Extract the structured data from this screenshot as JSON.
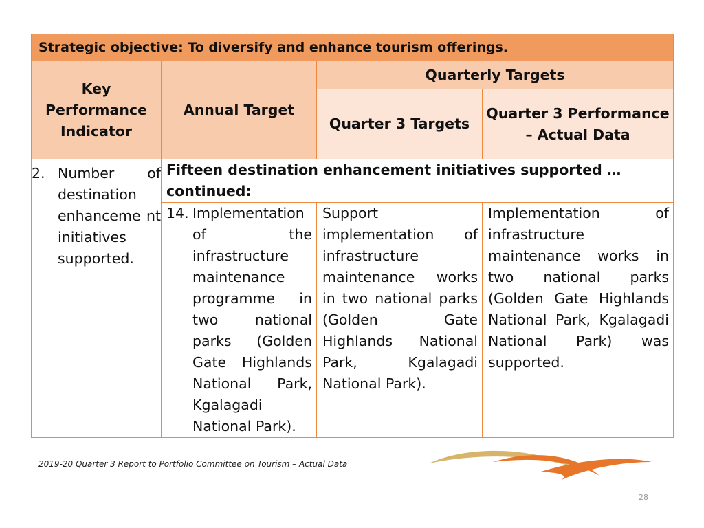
{
  "objective": "Strategic objective: To diversify and enhance tourism offerings.",
  "headers": {
    "kpi": "Key Performance Indicator",
    "annual_target": "Annual Target",
    "quarterly_targets": "Quarterly Targets",
    "q3_targets": "Quarter 3 Targets",
    "q3_performance": "Quarter 3 Performance – Actual Data"
  },
  "kpi": {
    "number": "2.",
    "text": "Number of destination enhanceme nt initiatives supported."
  },
  "initiative_heading": "Fifteen destination enhancement initiatives supported … continued:",
  "row": {
    "number": "14.",
    "annual_target": "Implementation of the infrastructure maintenance programme in two national parks (Golden Gate Highlands National Park, Kgalagadi National Park).",
    "q3_target": "Support implementation of infrastructure maintenance works in two national parks (Golden Gate Highlands National Park, Kgalagadi National Park).",
    "q3_performance": "Implementation of infrastructure maintenance works in two national parks (Golden Gate Highlands National Park, Kgalagadi National Park) was supported."
  },
  "footer": "2019-20 Quarter 3 Report to Portfolio Committee on Tourism – Actual Data",
  "page_number": "28",
  "colors": {
    "objective_bg": "#F19A5E",
    "header_bg": "#F8CBAC",
    "header_light_bg": "#FCE4D6",
    "border": "#ED8A3F",
    "logo_gold": "#D6B46A",
    "logo_orange": "#E8762A"
  }
}
